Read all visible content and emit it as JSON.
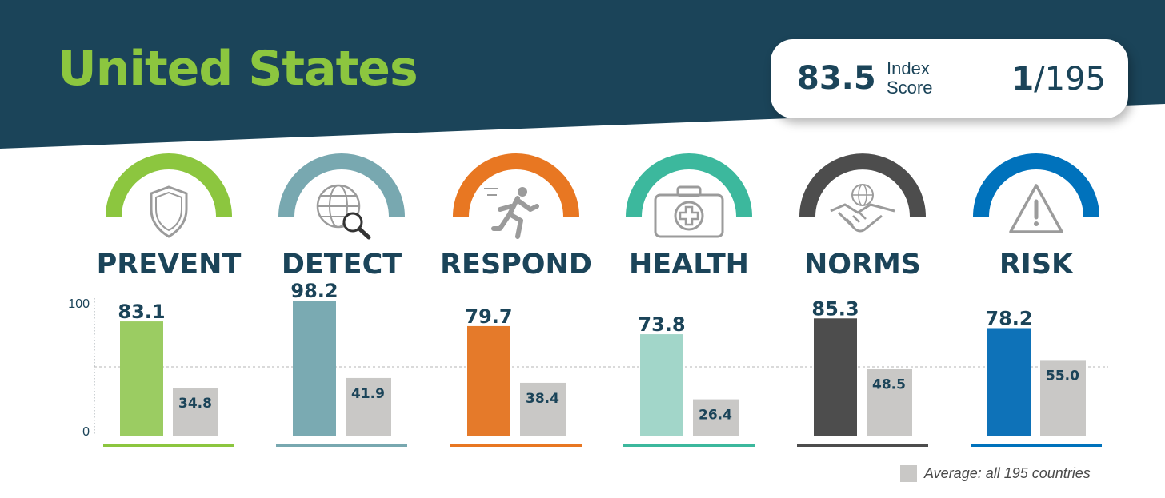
{
  "header": {
    "country": "United States",
    "score_value": "83.5",
    "score_label": "Index Score",
    "rank_position": "1",
    "rank_total": "/195"
  },
  "colors": {
    "banner": "#1b4459",
    "title": "#8cc63f",
    "text": "#1b4459",
    "average": "#c9c8c6",
    "icon_gray": "#9b9b9b"
  },
  "chart_data": {
    "type": "bar",
    "categories": [
      "PREVENT",
      "DETECT",
      "RESPOND",
      "HEALTH",
      "NORMS",
      "RISK"
    ],
    "series": [
      {
        "name": "United States",
        "values": [
          83.1,
          98.2,
          79.7,
          73.8,
          85.3,
          78.2
        ]
      },
      {
        "name": "Average: all 195 countries",
        "values": [
          34.8,
          41.9,
          38.4,
          26.4,
          48.5,
          55.0
        ]
      }
    ],
    "value_labels": {
      "United States": [
        "83.1",
        "98.2",
        "79.7",
        "73.8",
        "85.3",
        "78.2"
      ],
      "Average: all 195 countries": [
        "34.8",
        "41.9",
        "38.4",
        "26.4",
        "48.5",
        "55.0"
      ]
    },
    "pillar_colors": [
      "#8cc63f",
      "#78a8b0",
      "#e87722",
      "#3cb89d",
      "#4d4d4d",
      "#0072bc"
    ],
    "bar_colors": [
      "#9bcc62",
      "#7aaab2",
      "#e57a2a",
      "#a2d6c9",
      "#4d4d4d",
      "#0e72b8"
    ],
    "icons": [
      "shield-icon",
      "globe-search-icon",
      "running-person-icon",
      "medical-kit-icon",
      "handshake-globe-icon",
      "warning-icon"
    ],
    "ylim": [
      0,
      100
    ],
    "yticks": [
      "0",
      "100"
    ],
    "reference_line": 50,
    "legend": "bottom-right"
  },
  "legend": {
    "label": "Average: all 195 countries"
  }
}
